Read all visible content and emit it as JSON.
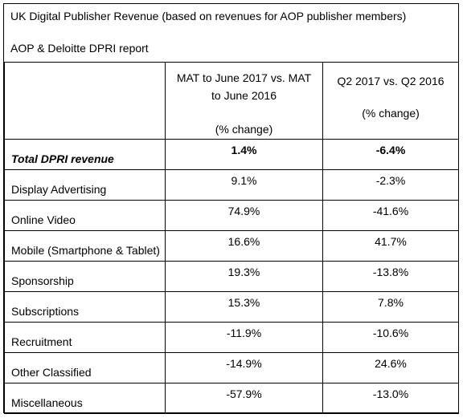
{
  "title": "UK Digital Publisher Revenue (based on revenues for AOP publisher members)",
  "subtitle": "AOP & Deloitte DPRI report",
  "chart_data": {
    "type": "table",
    "columns": [
      {
        "line1": "MAT to June 2017 vs. MAT",
        "line2": "to June 2016",
        "line3": "(% change)"
      },
      {
        "line1": "Q2 2017 vs. Q2 2016",
        "line2": "(% change)"
      }
    ],
    "rows": [
      {
        "label": "Total DPRI revenue",
        "mat": "1.4%",
        "q2": "-6.4%"
      },
      {
        "label": "Display Advertising",
        "mat": "9.1%",
        "q2": "-2.3%"
      },
      {
        "label": "Online Video",
        "mat": "74.9%",
        "q2": "-41.6%"
      },
      {
        "label": "Mobile (Smartphone & Tablet)",
        "mat": "16.6%",
        "q2": "41.7%"
      },
      {
        "label": "Sponsorship",
        "mat": "19.3%",
        "q2": "-13.8%"
      },
      {
        "label": "Subscriptions",
        "mat": "15.3%",
        "q2": "7.8%"
      },
      {
        "label": "Recruitment",
        "mat": "-11.9%",
        "q2": "-10.6%"
      },
      {
        "label": "Other Classified",
        "mat": "-14.9%",
        "q2": "24.6%"
      },
      {
        "label": "Miscellaneous",
        "mat": "-57.9%",
        "q2": "-13.0%"
      }
    ]
  }
}
